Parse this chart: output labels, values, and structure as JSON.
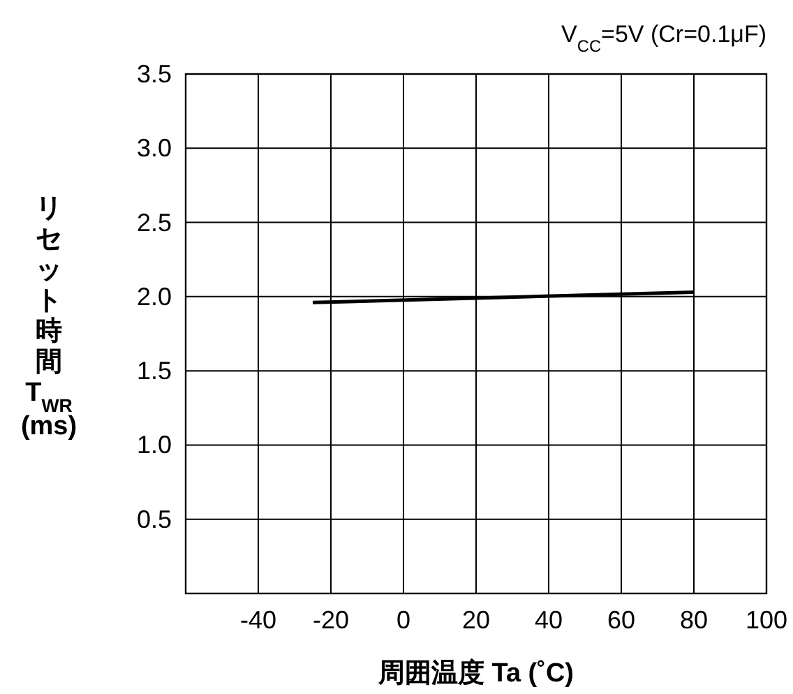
{
  "chart_data": {
    "type": "line",
    "title": "V$_{CC}$=5V (Cr=0.1μF)",
    "xlabel": "周囲温度 Ta (˚C)",
    "ylabel": "リセット時間 T$_{WR}$ (ms)",
    "series": [
      {
        "color": "#000000",
        "x": [
          -25,
          80
        ],
        "values": [
          1.96,
          2.03
        ]
      }
    ],
    "xlim": [
      -60,
      100
    ],
    "xticks": [
      {
        "value": -60,
        "label": null
      },
      -40,
      -20,
      0,
      20,
      40,
      60,
      80,
      100
    ],
    "ylim": [
      0,
      3.5
    ],
    "yticks": [
      {
        "value": 0,
        "label": null
      },
      0.5,
      {
        "value": 1,
        "label": "1.0"
      },
      1.5,
      {
        "value": 2,
        "label": "2.0"
      },
      2.5,
      {
        "value": 3,
        "label": "3.0"
      },
      3.5
    ],
    "grid": true,
    "marker": "none",
    "line_style": "solid"
  }
}
